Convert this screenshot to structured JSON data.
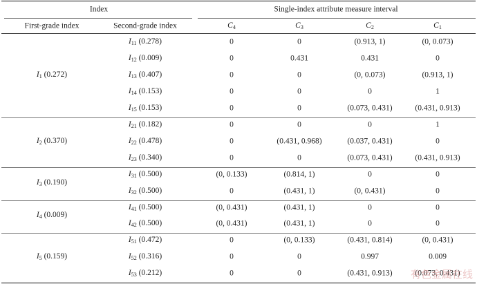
{
  "header": {
    "index": "Index",
    "attribute": "Single-index attribute measure interval",
    "first_grade": "First-grade index",
    "second_grade": "Second-grade index",
    "classes": [
      {
        "base": "C",
        "sub": "4"
      },
      {
        "base": "C",
        "sub": "3"
      },
      {
        "base": "C",
        "sub": "2"
      },
      {
        "base": "C",
        "sub": "1"
      }
    ]
  },
  "groups": [
    {
      "first": {
        "base": "I",
        "sub": "1",
        "weight": "(0.272)"
      },
      "rows": [
        {
          "base": "I",
          "sub": "11",
          "weight": "(0.278)",
          "values": [
            "0",
            "0",
            "(0.913, 1)",
            "(0, 0.073)"
          ]
        },
        {
          "base": "I",
          "sub": "12",
          "weight": "(0.009)",
          "values": [
            "0",
            "0.431",
            "0.431",
            "0"
          ]
        },
        {
          "base": "I",
          "sub": "13",
          "weight": "(0.407)",
          "values": [
            "0",
            "0",
            "(0, 0.073)",
            "(0.913, 1)"
          ]
        },
        {
          "base": "I",
          "sub": "14",
          "weight": "(0.153)",
          "values": [
            "0",
            "0",
            "0",
            "1"
          ]
        },
        {
          "base": "I",
          "sub": "15",
          "weight": "(0.153)",
          "values": [
            "0",
            "0",
            "(0.073, 0.431)",
            "(0.431, 0.913)"
          ]
        }
      ]
    },
    {
      "first": {
        "base": "I",
        "sub": "2",
        "weight": "(0.370)"
      },
      "rows": [
        {
          "base": "I",
          "sub": "21",
          "weight": "(0.182)",
          "values": [
            "0",
            "0",
            "0",
            "1"
          ]
        },
        {
          "base": "I",
          "sub": "22",
          "weight": "(0.478)",
          "values": [
            "0",
            "(0.431, 0.968)",
            "(0.037, 0.431)",
            "0"
          ]
        },
        {
          "base": "I",
          "sub": "23",
          "weight": "(0.340)",
          "values": [
            "0",
            "0",
            "(0.073, 0.431)",
            "(0.431, 0.913)"
          ]
        }
      ]
    },
    {
      "first": {
        "base": "I",
        "sub": "3",
        "weight": "(0.190)"
      },
      "rows": [
        {
          "base": "I",
          "sub": "31",
          "weight": "(0.500)",
          "values": [
            "(0, 0.133)",
            "(0.814, 1)",
            "0",
            "0"
          ]
        },
        {
          "base": "I",
          "sub": "32",
          "weight": "(0.500)",
          "values": [
            "0",
            "(0.431, 1)",
            "(0, 0.431)",
            "0"
          ]
        }
      ]
    },
    {
      "first": {
        "base": "I",
        "sub": "4",
        "weight": "(0.009)"
      },
      "rows": [
        {
          "base": "I",
          "sub": "41",
          "weight": "(0.500)",
          "values": [
            "(0, 0.431)",
            "(0.431, 1)",
            "0",
            "0"
          ]
        },
        {
          "base": "I",
          "sub": "42",
          "weight": "(0.500)",
          "values": [
            "(0, 0.431)",
            "(0.431, 1)",
            "0",
            "0"
          ]
        }
      ]
    },
    {
      "first": {
        "base": "I",
        "sub": "5",
        "weight": "(0.159)"
      },
      "rows": [
        {
          "base": "I",
          "sub": "51",
          "weight": "(0.472)",
          "values": [
            "0",
            "(0, 0.133)",
            "(0.431, 0.814)",
            "(0, 0.431)"
          ]
        },
        {
          "base": "I",
          "sub": "52",
          "weight": "(0.316)",
          "values": [
            "0",
            "0",
            "0.997",
            "0.009"
          ]
        },
        {
          "base": "I",
          "sub": "53",
          "weight": "(0.212)",
          "values": [
            "0",
            "0",
            "(0.431, 0.913)",
            "(0.073, 0.431)"
          ]
        }
      ]
    }
  ],
  "watermark": "有色金属在线"
}
